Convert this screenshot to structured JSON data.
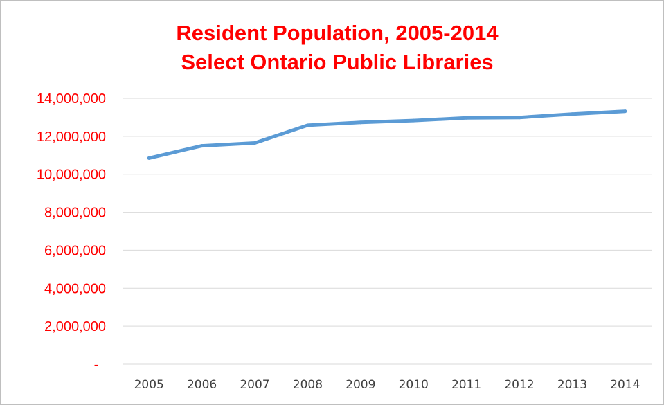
{
  "chart_data": {
    "type": "line",
    "title": "Resident Population, 2005-2014",
    "subtitle": "Select Ontario Public Libraries",
    "categories": [
      "2005",
      "2006",
      "2007",
      "2008",
      "2009",
      "2010",
      "2011",
      "2012",
      "2013",
      "2014"
    ],
    "series": [
      {
        "values": [
          10850000,
          11500000,
          11650000,
          12580000,
          12730000,
          12830000,
          12970000,
          12990000,
          13170000,
          13320000
        ]
      }
    ],
    "yticks": [
      {
        "value": 0,
        "label": "-"
      },
      {
        "value": 2000000,
        "label": "2,000,000"
      },
      {
        "value": 4000000,
        "label": "4,000,000"
      },
      {
        "value": 6000000,
        "label": "6,000,000"
      },
      {
        "value": 8000000,
        "label": "8,000,000"
      },
      {
        "value": 10000000,
        "label": "10,000,000"
      },
      {
        "value": 12000000,
        "label": "12,000,000"
      },
      {
        "value": 14000000,
        "label": "14,000,000"
      }
    ],
    "ylim": [
      0,
      14000000
    ],
    "xlabel": "",
    "ylabel": "",
    "grid": true,
    "legend": "none",
    "colors": {
      "title": "#ff0000",
      "ytick_labels": "#ff0000",
      "xtick_labels": "#404040",
      "line": "#5b9bd5",
      "gridline": "#d9d9d9"
    }
  }
}
